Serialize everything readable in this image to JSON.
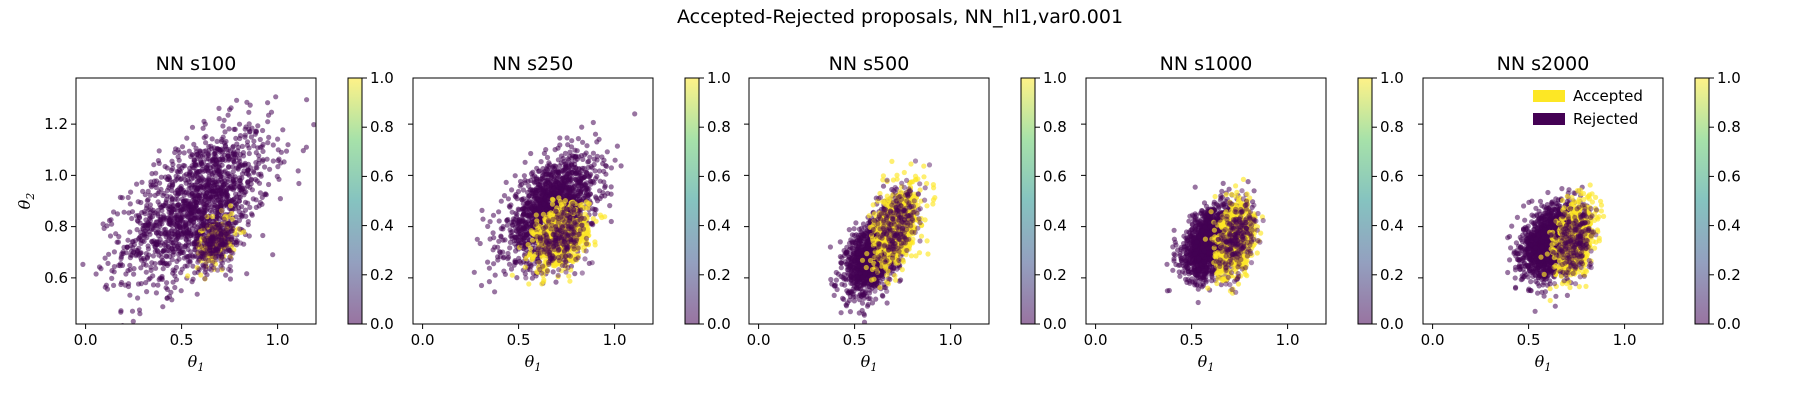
{
  "figure": {
    "suptitle": "Accepted-Rejected proposals, NN_hl1,var0.001"
  },
  "colors": {
    "accepted": "#fde725",
    "rejected": "#440154",
    "colorbar_stops": [
      "#440154",
      "#3b528b",
      "#21918c",
      "#5ec962",
      "#fde725"
    ]
  },
  "legend": {
    "placement": "top-right",
    "panel_index": 4,
    "entries": [
      {
        "label": "Accepted",
        "color": "#fde725"
      },
      {
        "label": "Rejected",
        "color": "#440154"
      }
    ]
  },
  "chart_data": [
    {
      "type": "scatter",
      "title": "NN s100",
      "xlabel": "θ1",
      "ylabel": "θ2",
      "xlim": [
        -0.05,
        1.2
      ],
      "ylim": [
        0.42,
        1.38
      ],
      "xticks": [
        "0.0",
        "0.5",
        "1.0"
      ],
      "yticks": [
        "0.6",
        "0.8",
        "1.0",
        "1.2"
      ],
      "yticks_values": [
        0.6,
        0.8,
        1.0,
        1.2
      ],
      "colorbar_ticks": [
        "0.0",
        "0.2",
        "0.4",
        "0.6",
        "0.8",
        "1.0"
      ],
      "rejected_cloud": {
        "center": [
          0.58,
          0.88
        ],
        "sd": [
          0.19,
          0.15
        ],
        "corr": 0.55
      },
      "accepted_cloud": {
        "center": [
          0.68,
          0.74
        ],
        "sd": [
          0.05,
          0.05
        ],
        "corr": 0.3
      }
    },
    {
      "type": "scatter",
      "title": "NN s250",
      "xlabel": "θ1",
      "ylabel": "",
      "xlim": [
        -0.05,
        1.2
      ],
      "ylim": [
        0.42,
        1.38
      ],
      "xticks": [
        "0.0",
        "0.5",
        "1.0"
      ],
      "yticks": [],
      "yticks_values": [
        0.6,
        0.8,
        1.0,
        1.2
      ],
      "colorbar_ticks": [
        "0.0",
        "0.2",
        "0.4",
        "0.6",
        "0.8",
        "1.0"
      ],
      "rejected_cloud": {
        "center": [
          0.67,
          0.87
        ],
        "sd": [
          0.12,
          0.1
        ],
        "corr": 0.5
      },
      "accepted_cloud": {
        "center": [
          0.72,
          0.76
        ],
        "sd": [
          0.07,
          0.06
        ],
        "corr": 0.3
      }
    },
    {
      "type": "scatter",
      "title": "NN s500",
      "xlabel": "θ1",
      "ylabel": "",
      "xlim": [
        -0.05,
        1.2
      ],
      "ylim": [
        0.42,
        1.38
      ],
      "xticks": [
        "0.0",
        "0.5",
        "1.0"
      ],
      "yticks": [],
      "yticks_values": [
        0.6,
        0.8,
        1.0,
        1.2
      ],
      "colorbar_ticks": [
        "0.0",
        "0.2",
        "0.4",
        "0.6",
        "0.8",
        "1.0"
      ],
      "rejected_cloud": {
        "center": [
          0.6,
          0.7
        ],
        "sd": [
          0.07,
          0.08
        ],
        "corr": 0.5
      },
      "accepted_cloud": {
        "center": [
          0.72,
          0.8
        ],
        "sd": [
          0.06,
          0.08
        ],
        "corr": 0.45
      }
    },
    {
      "type": "scatter",
      "title": "NN s1000",
      "xlabel": "θ1",
      "ylabel": "",
      "xlim": [
        -0.05,
        1.2
      ],
      "ylim": [
        0.42,
        1.38
      ],
      "xticks": [
        "0.0",
        "0.5",
        "1.0"
      ],
      "yticks": [],
      "yticks_values": [
        0.6,
        0.8,
        1.0,
        1.2
      ],
      "colorbar_ticks": [
        "0.0",
        "0.2",
        "0.4",
        "0.6",
        "0.8",
        "1.0"
      ],
      "rejected_cloud": {
        "center": [
          0.6,
          0.74
        ],
        "sd": [
          0.07,
          0.07
        ],
        "corr": 0.4
      },
      "accepted_cloud": {
        "center": [
          0.73,
          0.75
        ],
        "sd": [
          0.05,
          0.07
        ],
        "corr": 0.3
      }
    },
    {
      "type": "scatter",
      "title": "NN s2000",
      "xlabel": "θ1",
      "ylabel": "",
      "xlim": [
        -0.05,
        1.2
      ],
      "ylim": [
        0.42,
        1.38
      ],
      "xticks": [
        "0.0",
        "0.5",
        "1.0"
      ],
      "yticks": [],
      "yticks_values": [
        0.6,
        0.8,
        1.0,
        1.2
      ],
      "colorbar_ticks": [
        "0.0",
        "0.2",
        "0.4",
        "0.6",
        "0.8",
        "1.0"
      ],
      "rejected_cloud": {
        "center": [
          0.61,
          0.74
        ],
        "sd": [
          0.07,
          0.07
        ],
        "corr": 0.35
      },
      "accepted_cloud": {
        "center": [
          0.74,
          0.75
        ],
        "sd": [
          0.05,
          0.07
        ],
        "corr": 0.3
      }
    }
  ]
}
